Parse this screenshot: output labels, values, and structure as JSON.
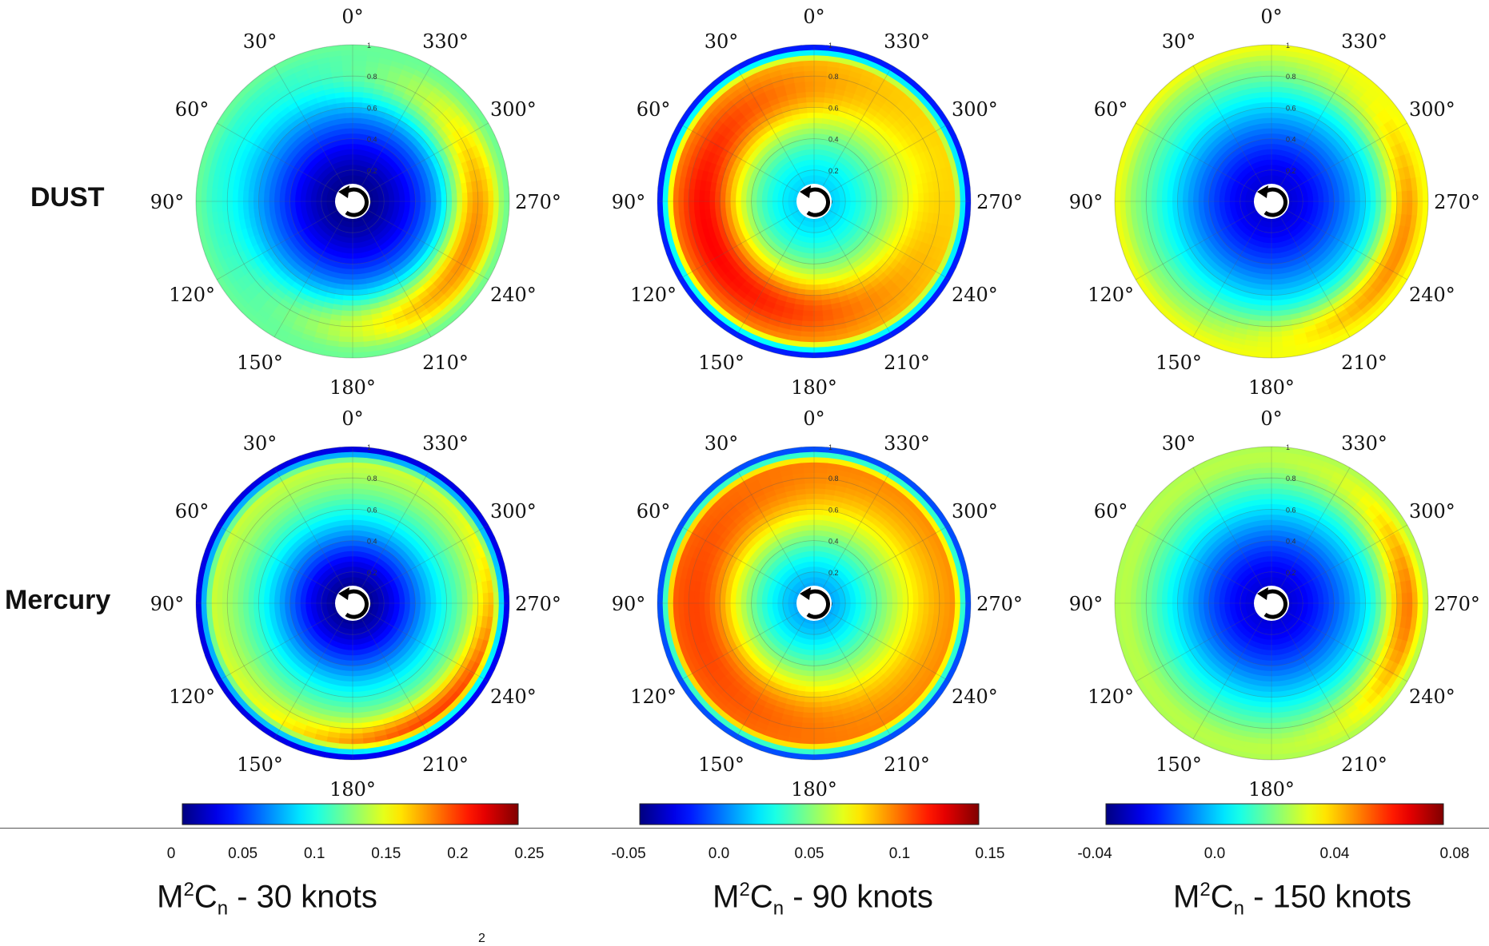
{
  "row_labels": [
    "DUST",
    "Mercury"
  ],
  "angle_labels": [
    "0°",
    "30°",
    "60°",
    "90°",
    "120°",
    "150°",
    "180°",
    "210°",
    "240°",
    "270°",
    "300°",
    "330°"
  ],
  "radial_tick_labels": [
    "0",
    "0.2",
    "0.4",
    "0.6",
    "0.8",
    "1"
  ],
  "colorbars": [
    {
      "ticks": [
        "0",
        "0.05",
        "0.1",
        "0.15",
        "0.2",
        "0.25"
      ],
      "title_main": "M",
      "title_sup": "2",
      "title_c": "C",
      "title_sub": "n",
      "title_rest": " - 30 knots"
    },
    {
      "ticks": [
        "-0.05",
        "0.0",
        "0.05",
        "0.1",
        "0.15"
      ],
      "title_main": "M",
      "title_sup": "2",
      "title_c": "C",
      "title_sub": "n",
      "title_rest": " - 90 knots"
    },
    {
      "ticks": [
        "-0.04",
        "0.0",
        "0.04",
        "0.08"
      ],
      "title_main": "M",
      "title_sup": "2",
      "title_c": "C",
      "title_sub": "n",
      "title_rest": " - 150 knots"
    }
  ],
  "stray_text": "2",
  "colormap": "jet",
  "chart_data": [
    {
      "type": "heatmap",
      "projection": "polar",
      "row": "DUST",
      "panel": "30 knots",
      "theta_direction": "counterclockwise",
      "theta_zero": "top",
      "r_range": [
        0,
        1
      ],
      "colorbar_range": [
        0,
        0.25
      ],
      "field": {
        "center_value": 0.0,
        "inner_sigma": 0.45,
        "ring_radius": 0.78,
        "ring_width": 0.18,
        "ring_base": 0.12,
        "ring_peak": 0.21,
        "ring_peak_angle_deg": 250,
        "ring_peak_spread_deg": 90,
        "outer_value": 0.12
      }
    },
    {
      "type": "heatmap",
      "projection": "polar",
      "row": "DUST",
      "panel": "90 knots",
      "theta_direction": "counterclockwise",
      "theta_zero": "top",
      "r_range": [
        0,
        1
      ],
      "colorbar_range": [
        -0.05,
        0.17
      ],
      "field": {
        "center_value": 0.02,
        "inner_sigma": 0.4,
        "ring_radius": 0.68,
        "ring_width": 0.22,
        "ring_base": 0.1,
        "ring_peak": 0.16,
        "ring_peak_angle_deg": 110,
        "ring_peak_spread_deg": 120,
        "outer_value": -0.04
      }
    },
    {
      "type": "heatmap",
      "projection": "polar",
      "row": "DUST",
      "panel": "150 knots",
      "theta_direction": "counterclockwise",
      "theta_zero": "top",
      "r_range": [
        0,
        1
      ],
      "colorbar_range": [
        -0.04,
        0.09
      ],
      "field": {
        "center_value": -0.03,
        "inner_sigma": 0.62,
        "ring_radius": 0.85,
        "ring_width": 0.14,
        "ring_base": 0.06,
        "ring_peak": 0.09,
        "ring_peak_angle_deg": 250,
        "ring_peak_spread_deg": 70,
        "outer_value": 0.04
      }
    },
    {
      "type": "heatmap",
      "projection": "polar",
      "row": "Mercury",
      "panel": "30 knots",
      "theta_direction": "counterclockwise",
      "theta_zero": "top",
      "r_range": [
        0,
        1
      ],
      "colorbar_range": [
        0,
        0.25
      ],
      "field": {
        "center_value": 0.0,
        "inner_sigma": 0.42,
        "ring_radius": 0.88,
        "ring_width": 0.12,
        "ring_base": 0.16,
        "ring_peak": 0.22,
        "ring_peak_angle_deg": 220,
        "ring_peak_spread_deg": 60,
        "outer_value": 0.0
      }
    },
    {
      "type": "heatmap",
      "projection": "polar",
      "row": "Mercury",
      "panel": "90 knots",
      "theta_direction": "counterclockwise",
      "theta_zero": "top",
      "r_range": [
        0,
        1
      ],
      "colorbar_range": [
        -0.05,
        0.17
      ],
      "field": {
        "center_value": 0.01,
        "inner_sigma": 0.4,
        "ring_radius": 0.68,
        "ring_width": 0.22,
        "ring_base": 0.12,
        "ring_peak": 0.15,
        "ring_peak_angle_deg": 100,
        "ring_peak_spread_deg": 100,
        "outer_value": -0.03
      }
    },
    {
      "type": "heatmap",
      "projection": "polar",
      "row": "Mercury",
      "panel": "150 knots",
      "theta_direction": "counterclockwise",
      "theta_zero": "top",
      "r_range": [
        0,
        1
      ],
      "colorbar_range": [
        -0.04,
        0.09
      ],
      "field": {
        "center_value": -0.03,
        "inner_sigma": 0.6,
        "ring_radius": 0.85,
        "ring_width": 0.14,
        "ring_base": 0.06,
        "ring_peak": 0.09,
        "ring_peak_angle_deg": 268,
        "ring_peak_spread_deg": 50,
        "outer_value": 0.03
      }
    }
  ]
}
